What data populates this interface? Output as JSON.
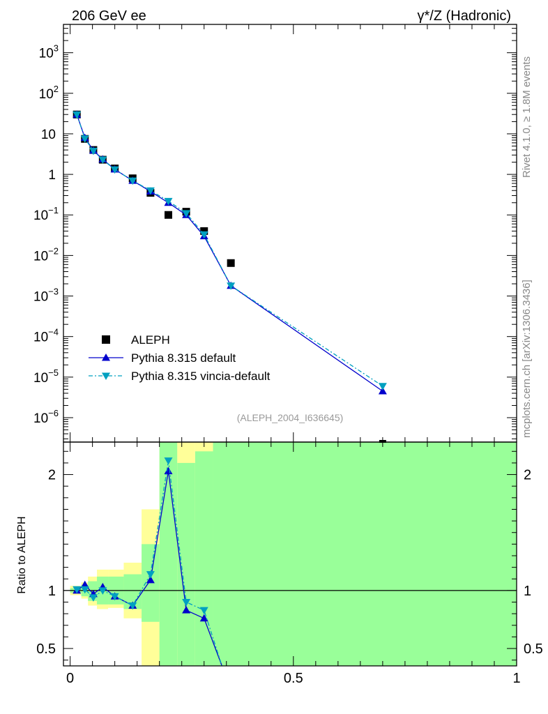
{
  "header": {
    "energy_label": "206 GeV ee",
    "process_label": "γ*/Z (Hadronic)"
  },
  "side_labels": {
    "rivet": "Rivet 4.1.0, ≥ 1.8M events",
    "mcplots": "mcplots.cern.ch [arXiv:1306.3436]"
  },
  "analysis_label": "(ALEPH_2004_I636645)",
  "ratio_ylabel": "Ratio to ALEPH",
  "legend": [
    {
      "label": "ALEPH",
      "marker": "square",
      "color": "#000000"
    },
    {
      "label": "Pythia 8.315 default",
      "marker": "triangle-up",
      "color": "#0000cc"
    },
    {
      "label": "Pythia 8.315 vincia-default",
      "marker": "triangle-down",
      "color": "#00a0c0"
    }
  ],
  "chart_data": {
    "type": "line",
    "main": {
      "yscale": "log",
      "ylim": [
        2.5e-07,
        5000
      ],
      "xlim": [
        -0.015,
        1.0
      ],
      "y_ticks": [
        {
          "value": 1e-06,
          "base": "10",
          "exp": "−6"
        },
        {
          "value": 1e-05,
          "base": "10",
          "exp": "−5"
        },
        {
          "value": 0.0001,
          "base": "10",
          "exp": "−4"
        },
        {
          "value": 0.001,
          "base": "10",
          "exp": "−3"
        },
        {
          "value": 0.01,
          "base": "10",
          "exp": "−2"
        },
        {
          "value": 0.1,
          "base": "10",
          "exp": "−1"
        },
        {
          "value": 1,
          "base": "1",
          "exp": ""
        },
        {
          "value": 10,
          "base": "10",
          "exp": ""
        },
        {
          "value": 100,
          "base": "10",
          "exp": "2"
        },
        {
          "value": 1000,
          "base": "10",
          "exp": "3"
        }
      ],
      "series": [
        {
          "name": "ALEPH",
          "x": [
            0.015,
            0.033,
            0.052,
            0.073,
            0.1,
            0.14,
            0.18,
            0.22,
            0.26,
            0.3,
            0.36,
            0.7
          ],
          "y": [
            30,
            7.5,
            4.0,
            2.3,
            1.4,
            0.8,
            0.35,
            0.1,
            0.12,
            0.04,
            0.0065,
            2.2e-07
          ]
        },
        {
          "name": "Pythia 8.315 default",
          "x": [
            0.015,
            0.033,
            0.052,
            0.073,
            0.1,
            0.14,
            0.18,
            0.22,
            0.26,
            0.3,
            0.36,
            0.7
          ],
          "y": [
            30,
            8.0,
            3.9,
            2.35,
            1.33,
            0.7,
            0.38,
            0.2,
            0.1,
            0.03,
            0.0018,
            4.5e-06
          ]
        },
        {
          "name": "Pythia 8.315 vincia-default",
          "x": [
            0.015,
            0.033,
            0.052,
            0.073,
            0.1,
            0.14,
            0.18,
            0.22,
            0.26,
            0.3,
            0.36,
            0.7
          ],
          "y": [
            30,
            7.6,
            3.8,
            2.3,
            1.32,
            0.7,
            0.4,
            0.22,
            0.11,
            0.033,
            0.0018,
            6e-06
          ]
        }
      ]
    },
    "ratio": {
      "ylabel": "Ratio to ALEPH",
      "ylim": [
        0.35,
        2.28
      ],
      "xlim": [
        -0.015,
        1.0
      ],
      "x_ticks": [
        0,
        0.5,
        1
      ],
      "x_tick_labels": [
        "0",
        "0.5",
        "1"
      ],
      "y_ticks": [
        0.5,
        1,
        2
      ],
      "y_tick_labels": [
        "0.5",
        "1",
        "2"
      ],
      "bins": [
        {
          "x0": 0.0,
          "x1": 0.025,
          "green": [
            0.98,
            1.02
          ],
          "yellow": [
            0.96,
            1.04
          ]
        },
        {
          "x0": 0.025,
          "x1": 0.04,
          "green": [
            0.95,
            1.05
          ],
          "yellow": [
            0.93,
            1.07
          ]
        },
        {
          "x0": 0.04,
          "x1": 0.06,
          "green": [
            0.91,
            1.08
          ],
          "yellow": [
            0.87,
            1.12
          ]
        },
        {
          "x0": 0.06,
          "x1": 0.085,
          "green": [
            0.88,
            1.12
          ],
          "yellow": [
            0.84,
            1.18
          ]
        },
        {
          "x0": 0.085,
          "x1": 0.12,
          "green": [
            0.88,
            1.12
          ],
          "yellow": [
            0.85,
            1.18
          ]
        },
        {
          "x0": 0.12,
          "x1": 0.16,
          "green": [
            0.84,
            1.14
          ],
          "yellow": [
            0.76,
            1.24
          ]
        },
        {
          "x0": 0.16,
          "x1": 0.2,
          "green": [
            0.73,
            1.4
          ],
          "yellow": [
            0.3,
            1.7
          ]
        },
        {
          "x0": 0.2,
          "x1": 0.24,
          "green": [
            0.3,
            2.3
          ],
          "yellow": [
            0.3,
            2.3
          ]
        },
        {
          "x0": 0.24,
          "x1": 0.28,
          "green": [
            0.3,
            2.1
          ],
          "yellow": [
            0.3,
            2.3
          ]
        },
        {
          "x0": 0.28,
          "x1": 0.32,
          "green": [
            0.3,
            2.2
          ],
          "yellow": [
            0.3,
            2.3
          ]
        },
        {
          "x0": 0.32,
          "x1": 1.0,
          "green": [
            0.3,
            2.3
          ],
          "yellow": [
            0.3,
            2.3
          ]
        }
      ],
      "series": [
        {
          "name": "Pythia 8.315 default",
          "x": [
            0.015,
            0.033,
            0.052,
            0.073,
            0.1,
            0.14,
            0.18,
            0.22,
            0.26,
            0.3,
            0.34
          ],
          "y": [
            1.0,
            1.05,
            0.97,
            1.03,
            0.95,
            0.87,
            1.09,
            2.03,
            0.83,
            0.76,
            0.3
          ]
        },
        {
          "name": "Pythia 8.315 vincia-default",
          "x": [
            0.015,
            0.033,
            0.052,
            0.073,
            0.1,
            0.14,
            0.18,
            0.22,
            0.26,
            0.3,
            0.34
          ],
          "y": [
            1.01,
            1.01,
            0.94,
            1.0,
            0.95,
            0.87,
            1.14,
            2.12,
            0.9,
            0.83,
            0.3
          ]
        }
      ]
    }
  }
}
